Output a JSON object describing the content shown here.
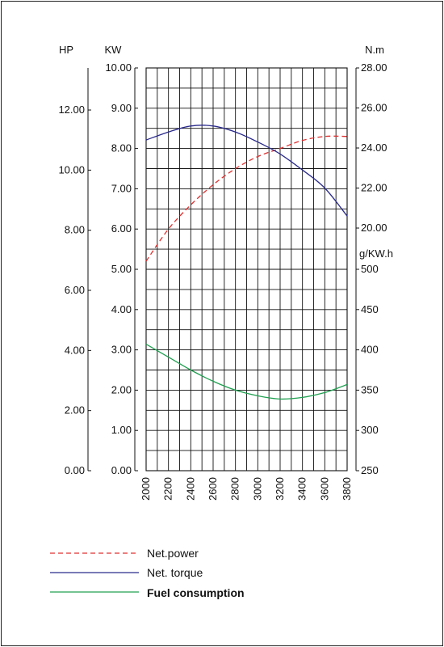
{
  "chart_data": {
    "type": "line",
    "x": {
      "values": [
        2000,
        2200,
        2400,
        2600,
        2800,
        3000,
        3200,
        3400,
        3600,
        3800
      ],
      "tick_labels": [
        "2000",
        "2200",
        "2400",
        "2600",
        "2800",
        "3000",
        "3200",
        "3400",
        "3600",
        "3800"
      ],
      "range": [
        2000,
        3800
      ]
    },
    "axes": {
      "hp": {
        "label": "HP",
        "range": [
          0,
          13.4
        ],
        "ticks": [
          0,
          2,
          4,
          6,
          8,
          10,
          12
        ],
        "tick_labels": [
          "0.00",
          "2.00",
          "4.00",
          "6.00",
          "8.00",
          "10.00",
          "12.00"
        ]
      },
      "kw": {
        "label": "KW",
        "range": [
          0,
          10
        ],
        "ticks": [
          0,
          1,
          2,
          3,
          4,
          5,
          6,
          7,
          8,
          9,
          10
        ],
        "tick_labels": [
          "0.00",
          "1.00",
          "2.00",
          "3.00",
          "4.00",
          "5.00",
          "6.00",
          "7.00",
          "8.00",
          "9.00",
          "10.00"
        ]
      },
      "nm": {
        "label": "N.m",
        "range": [
          20,
          28
        ],
        "ticks": [
          20,
          22,
          24,
          26,
          28
        ],
        "tick_labels": [
          "20.00",
          "22.00",
          "24.00",
          "26.00",
          "28.00"
        ]
      },
      "gkwh": {
        "label": "g/KW.h",
        "range": [
          250,
          500
        ],
        "ticks": [
          250,
          300,
          350,
          400,
          450,
          500
        ],
        "tick_labels": [
          "250",
          "300",
          "350",
          "400",
          "450",
          "500"
        ]
      }
    },
    "grid": true,
    "series": [
      {
        "name": "Net.power",
        "axis": "kw",
        "color": "#e03030",
        "dash": true,
        "x": [
          2000,
          2200,
          2400,
          2600,
          2800,
          3000,
          3200,
          3400,
          3600,
          3800
        ],
        "values": [
          5.2,
          6.0,
          6.6,
          7.1,
          7.5,
          7.8,
          8.0,
          8.2,
          8.3,
          8.3
        ]
      },
      {
        "name": "Net. torque",
        "axis": "nm",
        "color": "#2a2a8c",
        "dash": false,
        "x": [
          2000,
          2200,
          2400,
          2600,
          2800,
          3000,
          3200,
          3400,
          3600,
          3800
        ],
        "values": [
          24.4,
          24.8,
          25.1,
          25.1,
          24.8,
          24.3,
          23.7,
          22.9,
          22.0,
          20.6
        ]
      },
      {
        "name": "Fuel consumption",
        "axis": "gkwh",
        "color": "#20a050",
        "dash": false,
        "x": [
          2000,
          2200,
          2400,
          2600,
          2800,
          3000,
          3200,
          3400,
          3600,
          3800
        ],
        "values": [
          407,
          391,
          375,
          361,
          350,
          343,
          339,
          341,
          347,
          357
        ]
      }
    ]
  }
}
